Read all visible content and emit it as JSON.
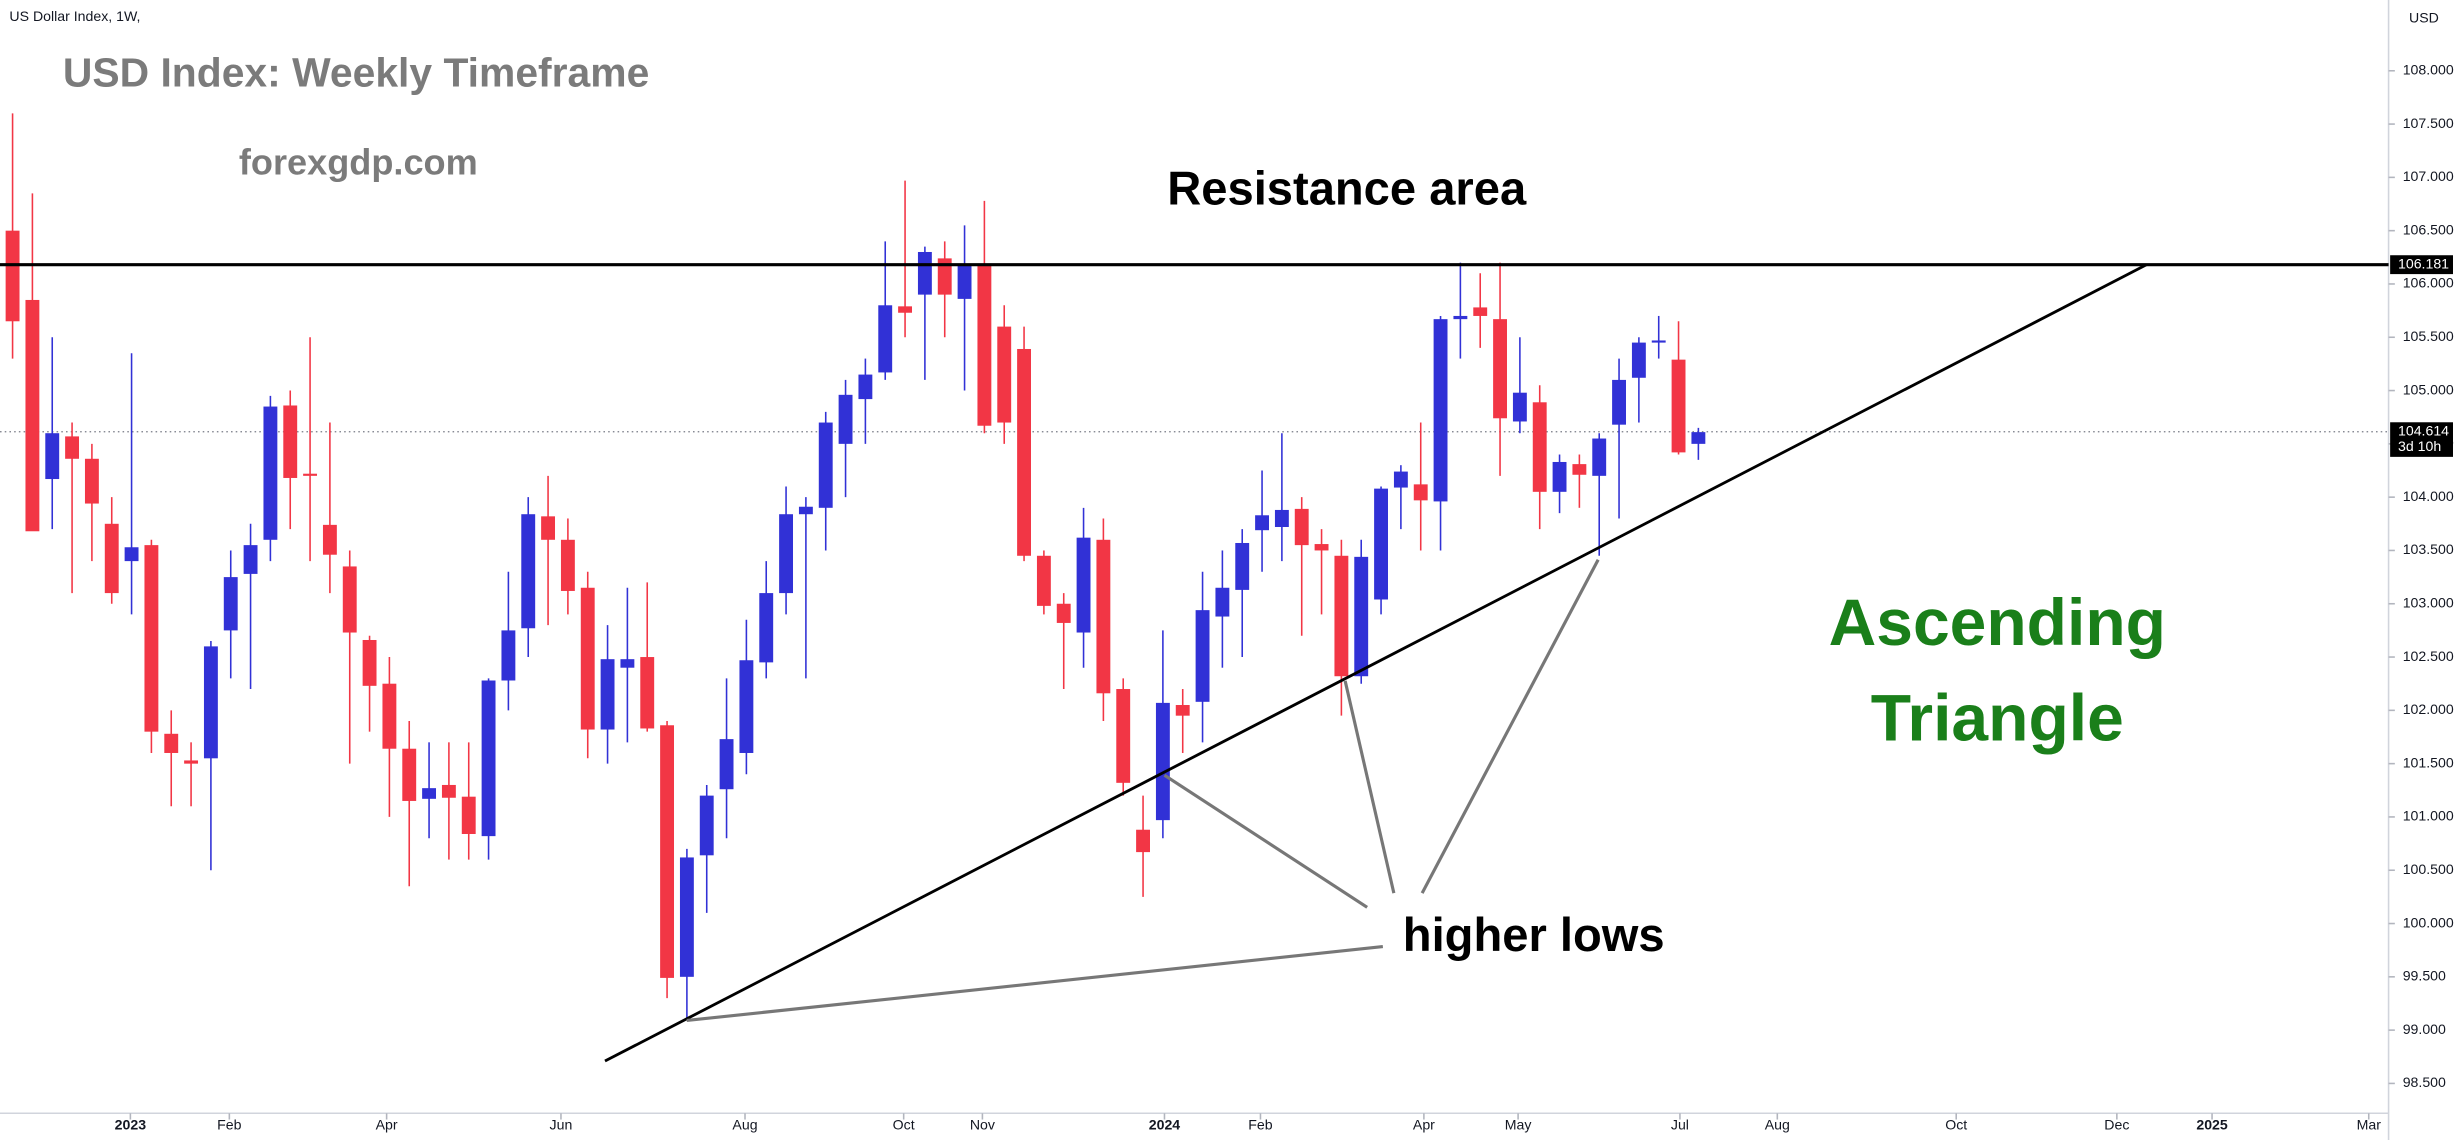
{
  "chart_data": {
    "type": "candlestick",
    "symbol_label": "US Dollar Index, 1W,",
    "currency": "USD",
    "title": "USD Index: Weekly Timeframe",
    "subtitle": "forexgdp.com",
    "annotations": {
      "resistance": "Resistance area",
      "pattern": [
        "Ascending",
        "Triangle"
      ],
      "lows": "higher lows"
    },
    "up_color": "#3131d6",
    "down_color": "#f23645",
    "x": [
      0,
      1,
      2,
      3,
      4,
      5,
      6,
      7,
      8,
      9,
      10,
      11,
      12,
      13,
      14,
      15,
      16,
      17,
      18,
      19,
      20,
      21,
      22,
      23,
      24,
      25,
      26,
      27,
      28,
      29,
      30,
      31,
      32,
      33,
      34,
      35,
      36,
      37,
      38,
      39,
      40,
      41,
      42,
      43,
      44,
      45,
      46,
      47,
      48,
      49,
      50,
      51,
      52,
      53,
      54,
      55,
      56,
      57,
      58,
      59,
      60,
      61,
      62,
      63,
      64,
      65,
      66,
      67,
      68,
      69,
      70,
      71,
      72,
      73,
      74,
      75,
      76,
      77,
      78,
      79,
      80,
      81,
      82,
      83,
      84,
      85
    ],
    "open": [
      106.5,
      105.85,
      104.17,
      104.57,
      104.36,
      103.75,
      103.4,
      103.55,
      101.78,
      101.53,
      101.55,
      102.75,
      103.28,
      103.6,
      104.86,
      104.22,
      103.74,
      103.35,
      102.66,
      102.25,
      101.64,
      101.17,
      101.3,
      101.19,
      100.82,
      102.28,
      102.77,
      103.82,
      103.6,
      103.15,
      101.82,
      102.4,
      102.5,
      101.86,
      99.5,
      100.64,
      101.26,
      101.6,
      102.45,
      103.1,
      103.84,
      103.9,
      104.5,
      104.92,
      105.17,
      105.79,
      105.9,
      106.24,
      105.86,
      106.18,
      105.6,
      105.39,
      103.45,
      103.0,
      102.73,
      103.6,
      102.2,
      100.88,
      100.97,
      102.05,
      102.08,
      102.88,
      103.13,
      103.69,
      103.72,
      103.89,
      103.56,
      103.45,
      102.32,
      103.04,
      104.09,
      104.12,
      103.96,
      105.67,
      105.78,
      105.67,
      104.71,
      104.89,
      104.05,
      104.31,
      104.2,
      104.68,
      105.12,
      105.45,
      105.29,
      104.5
    ],
    "high": [
      107.6,
      106.85,
      105.5,
      104.7,
      104.5,
      104.0,
      105.35,
      103.6,
      102.0,
      101.7,
      102.65,
      103.5,
      103.75,
      104.95,
      105.0,
      105.5,
      104.7,
      103.5,
      102.7,
      102.5,
      101.9,
      101.7,
      101.7,
      101.7,
      102.3,
      103.3,
      104.0,
      104.2,
      103.8,
      103.3,
      102.8,
      103.15,
      103.2,
      101.9,
      100.7,
      101.3,
      102.3,
      102.85,
      103.4,
      104.1,
      104.0,
      104.8,
      105.1,
      105.3,
      106.4,
      106.97,
      106.35,
      106.4,
      106.55,
      106.78,
      105.8,
      105.6,
      103.5,
      103.1,
      103.9,
      103.8,
      102.3,
      101.2,
      102.75,
      102.2,
      103.3,
      103.5,
      103.7,
      104.25,
      104.6,
      104.0,
      103.7,
      103.6,
      103.6,
      104.1,
      104.3,
      104.7,
      105.7,
      106.2,
      106.1,
      106.2,
      105.5,
      105.05,
      104.4,
      104.4,
      104.6,
      105.3,
      105.5,
      105.7,
      105.65,
      104.65
    ],
    "low": [
      105.3,
      103.7,
      103.7,
      103.1,
      103.4,
      103.0,
      102.9,
      101.6,
      101.1,
      101.1,
      100.5,
      102.3,
      102.2,
      103.4,
      103.7,
      103.4,
      103.1,
      101.5,
      101.8,
      101.0,
      100.35,
      100.8,
      100.6,
      100.6,
      100.6,
      102.0,
      102.5,
      102.8,
      102.9,
      101.55,
      101.5,
      101.7,
      101.8,
      99.3,
      99.1,
      100.1,
      100.8,
      101.4,
      102.3,
      102.9,
      102.3,
      103.5,
      104.0,
      104.5,
      105.1,
      105.5,
      105.1,
      105.5,
      105.0,
      104.6,
      104.5,
      103.4,
      102.9,
      102.2,
      102.4,
      101.9,
      101.2,
      100.25,
      100.8,
      101.6,
      101.7,
      102.4,
      102.5,
      103.3,
      103.4,
      102.7,
      102.9,
      101.95,
      102.25,
      102.9,
      103.7,
      103.5,
      103.5,
      105.3,
      105.4,
      104.2,
      104.6,
      103.7,
      103.85,
      103.9,
      103.45,
      103.8,
      104.7,
      105.3,
      104.4,
      104.35
    ],
    "close": [
      105.65,
      103.68,
      104.6,
      104.36,
      103.94,
      103.1,
      103.53,
      101.8,
      101.6,
      101.5,
      102.6,
      103.25,
      103.55,
      104.85,
      104.18,
      104.2,
      103.46,
      102.73,
      102.23,
      101.64,
      101.15,
      101.27,
      101.18,
      100.84,
      102.28,
      102.75,
      103.84,
      103.6,
      103.12,
      101.82,
      102.48,
      102.48,
      101.83,
      99.49,
      100.62,
      101.2,
      101.73,
      102.47,
      103.1,
      103.84,
      103.91,
      104.7,
      104.96,
      105.15,
      105.8,
      105.73,
      106.3,
      105.9,
      106.18,
      104.67,
      104.7,
      103.45,
      102.98,
      102.82,
      103.62,
      102.16,
      101.32,
      100.67,
      102.07,
      101.95,
      102.94,
      103.15,
      103.57,
      103.83,
      103.88,
      103.55,
      103.5,
      102.32,
      103.44,
      104.08,
      104.24,
      103.97,
      105.67,
      105.7,
      105.7,
      104.74,
      104.98,
      104.05,
      104.33,
      104.21,
      104.55,
      105.1,
      105.45,
      105.47,
      104.42,
      104.61
    ],
    "xlim": [
      -0.634,
      119.8
    ],
    "xticks": [
      {
        "value": 5.94,
        "label": "2023"
      },
      {
        "value": 10.93,
        "label": "Feb"
      },
      {
        "value": 18.86,
        "label": "Apr"
      },
      {
        "value": 27.65,
        "label": "Jun"
      },
      {
        "value": 36.93,
        "label": "Aug"
      },
      {
        "value": 44.93,
        "label": "Oct"
      },
      {
        "value": 48.9,
        "label": "Nov"
      },
      {
        "value": 58.08,
        "label": "2024"
      },
      {
        "value": 62.92,
        "label": "Feb"
      },
      {
        "value": 71.16,
        "label": "Apr"
      },
      {
        "value": 75.91,
        "label": "May"
      },
      {
        "value": 84.07,
        "label": "Jul"
      },
      {
        "value": 88.98,
        "label": "Aug"
      },
      {
        "value": 98.0,
        "label": "Oct"
      },
      {
        "value": 106.1,
        "label": "Dec"
      },
      {
        "value": 110.9,
        "label": "2025"
      },
      {
        "value": 118.8,
        "label": "Mar"
      }
    ],
    "ylim": [
      98.22,
      108.664
    ],
    "yticks": [
      {
        "value": 98.5,
        "label": "98.500"
      },
      {
        "value": 99,
        "label": "99.000"
      },
      {
        "value": 99.5,
        "label": "99.500"
      },
      {
        "value": 100,
        "label": "100.000"
      },
      {
        "value": 100.5,
        "label": "100.500"
      },
      {
        "value": 101,
        "label": "101.000"
      },
      {
        "value": 101.5,
        "label": "101.500"
      },
      {
        "value": 102,
        "label": "102.000"
      },
      {
        "value": 102.5,
        "label": "102.500"
      },
      {
        "value": 103,
        "label": "103.000"
      },
      {
        "value": 103.5,
        "label": "103.500"
      },
      {
        "value": 104,
        "label": "104.000"
      },
      {
        "value": 104.5,
        "label": "104.500"
      },
      {
        "value": 105,
        "label": "105.000"
      },
      {
        "value": 105.5,
        "label": "105.500"
      },
      {
        "value": 106,
        "label": "106.000"
      },
      {
        "value": 106.5,
        "label": "106.500"
      },
      {
        "value": 107,
        "label": "107.000"
      },
      {
        "value": 107.5,
        "label": "107.500"
      },
      {
        "value": 108,
        "label": "108.000"
      }
    ],
    "resistance": {
      "value": 106.181,
      "label": "106.181"
    },
    "last_price": {
      "value": 104.614,
      "label": "104.614"
    },
    "countdown": "3d 10h",
    "trendline": {
      "x": [
        29.87,
        107.6
      ],
      "y": [
        98.71,
        106.181
      ]
    }
  }
}
